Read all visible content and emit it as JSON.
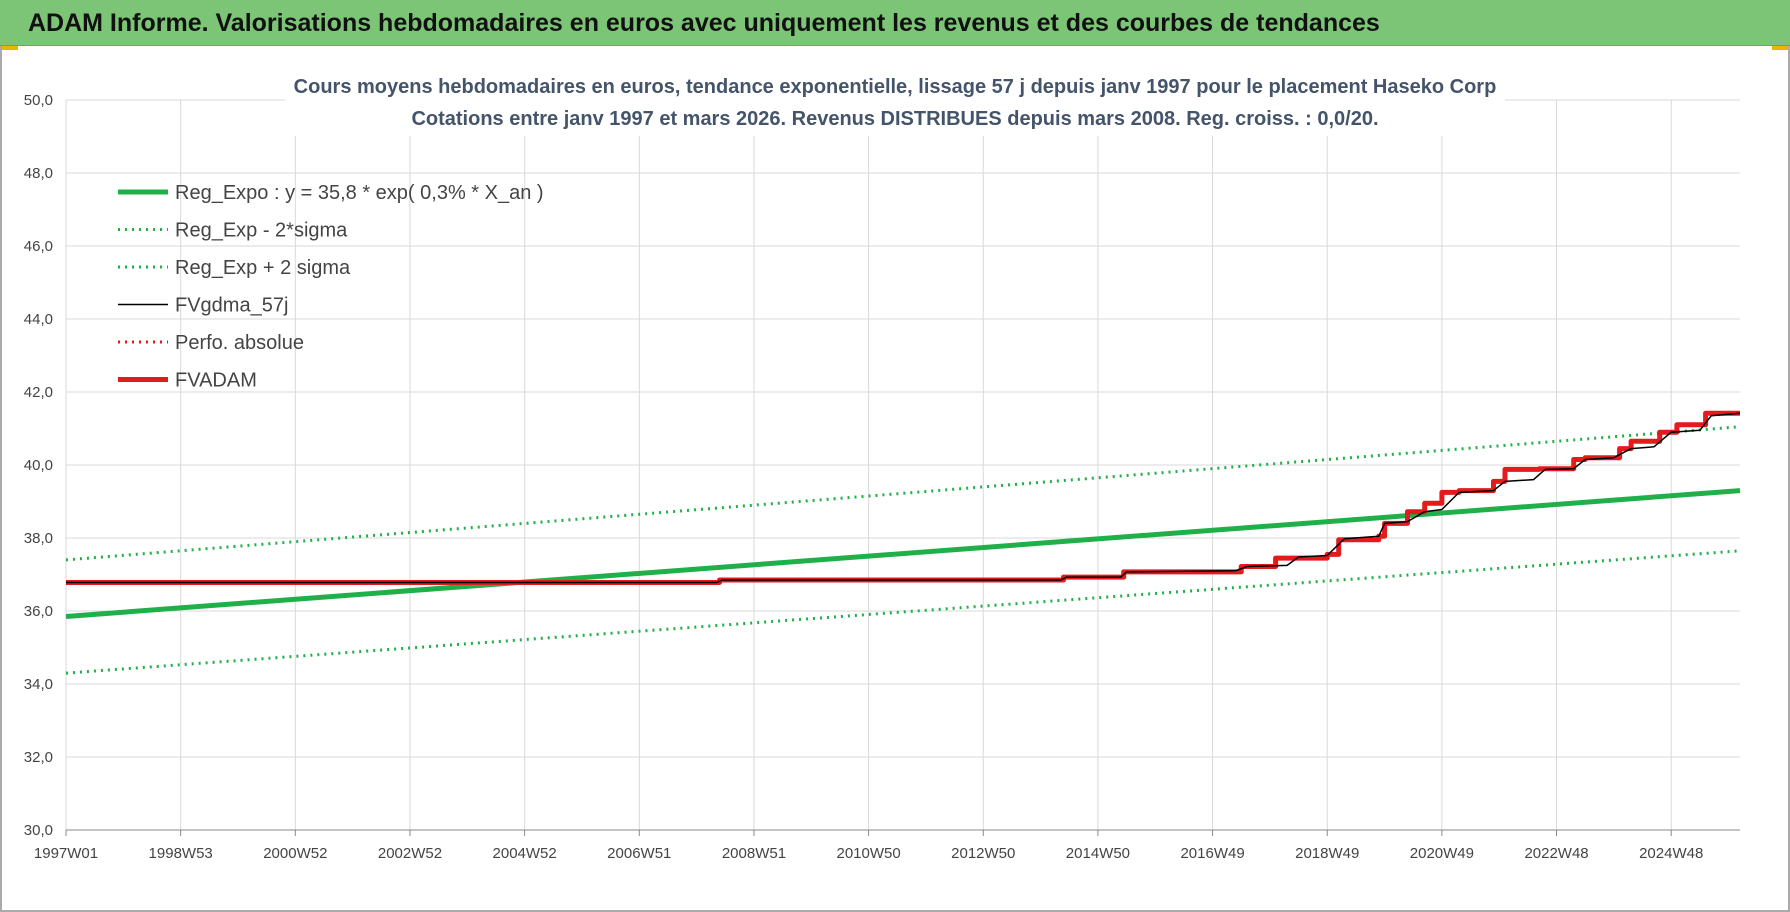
{
  "header": {
    "title": "ADAM Informe. Valorisations hebdomadaires en euros avec uniquement les revenus et des courbes de tendances"
  },
  "chart_data": {
    "type": "line",
    "title": "Cours moyens hebdomadaires en euros, tendance exponentielle, lissage 57 j depuis janv 1997  pour le placement Haseko Corp",
    "subtitle": "Cotations entre janv 1997 et mars 2026. Revenus DISTRIBUES depuis mars 2008.  Reg. croiss. : 0,0/20.",
    "xlabel": "",
    "ylabel": "",
    "ylim": [
      30,
      50
    ],
    "xlim": [
      1997.0,
      2026.2
    ],
    "grid": true,
    "legend_position": "top-left",
    "x_ticks": [
      {
        "x": 1997.0,
        "label": "1997W01"
      },
      {
        "x": 1999.0,
        "label": "1998W53"
      },
      {
        "x": 2001.0,
        "label": "2000W52"
      },
      {
        "x": 2003.0,
        "label": "2002W52"
      },
      {
        "x": 2005.0,
        "label": "2004W52"
      },
      {
        "x": 2007.0,
        "label": "2006W51"
      },
      {
        "x": 2009.0,
        "label": "2008W51"
      },
      {
        "x": 2011.0,
        "label": "2010W50"
      },
      {
        "x": 2013.0,
        "label": "2012W50"
      },
      {
        "x": 2015.0,
        "label": "2014W50"
      },
      {
        "x": 2017.0,
        "label": "2016W49"
      },
      {
        "x": 2019.0,
        "label": "2018W49"
      },
      {
        "x": 2021.0,
        "label": "2020W49"
      },
      {
        "x": 2023.0,
        "label": "2022W48"
      },
      {
        "x": 2025.0,
        "label": "2024W48"
      }
    ],
    "y_ticks": [
      {
        "y": 30,
        "label": "30,0"
      },
      {
        "y": 32,
        "label": "32,0"
      },
      {
        "y": 34,
        "label": "34,0"
      },
      {
        "y": 36,
        "label": "36,0"
      },
      {
        "y": 38,
        "label": "38,0"
      },
      {
        "y": 40,
        "label": "40,0"
      },
      {
        "y": 42,
        "label": "42,0"
      },
      {
        "y": 44,
        "label": "44,0"
      },
      {
        "y": 46,
        "label": "46,0"
      },
      {
        "y": 48,
        "label": "48,0"
      },
      {
        "y": 50,
        "label": "50,0"
      }
    ],
    "series": [
      {
        "name": "Reg_Expo : y = 35,8 * exp( 0,3% *  X_an )",
        "color": "#1fb04a",
        "style": "solid-thick",
        "x": [
          1997.0,
          2026.2
        ],
        "y": [
          35.85,
          39.3
        ]
      },
      {
        "name": "Reg_Exp - 2*sigma",
        "color": "#1fb04a",
        "style": "dotted",
        "x": [
          1997.0,
          2026.2
        ],
        "y": [
          34.3,
          37.65
        ]
      },
      {
        "name": "Reg_Exp + 2 sigma",
        "color": "#1fb04a",
        "style": "dotted",
        "x": [
          1997.0,
          2026.2
        ],
        "y": [
          37.4,
          41.05
        ]
      },
      {
        "name": "FVgdma_57j",
        "color": "#000000",
        "style": "solid-thin",
        "x": [
          1997.0,
          2008.35,
          2008.45,
          2014.35,
          2014.45,
          2015.4,
          2015.5,
          2017.4,
          2017.6,
          2018.3,
          2018.5,
          2019.0,
          2019.3,
          2019.9,
          2020.0,
          2020.4,
          2020.7,
          2021.0,
          2021.3,
          2021.9,
          2022.1,
          2022.6,
          2022.8,
          2023.3,
          2023.5,
          2024.0,
          2024.3,
          2024.7,
          2025.0,
          2025.5,
          2025.7,
          2026.2
        ],
        "y": [
          36.78,
          36.78,
          36.85,
          36.85,
          36.93,
          36.93,
          37.07,
          37.1,
          37.22,
          37.25,
          37.48,
          37.52,
          37.98,
          38.05,
          38.4,
          38.45,
          38.72,
          38.78,
          39.25,
          39.3,
          39.55,
          39.6,
          39.88,
          39.9,
          40.15,
          40.2,
          40.45,
          40.5,
          40.9,
          40.95,
          41.35,
          41.42
        ]
      },
      {
        "name": "Perfo. absolue",
        "color": "#e41a1c",
        "style": "dotted",
        "x": [],
        "y": []
      },
      {
        "name": "FVADAM",
        "color": "#e41a1c",
        "style": "solid-thick",
        "x": [
          1997.0,
          2008.4,
          2008.4,
          2014.4,
          2014.4,
          2015.45,
          2015.45,
          2017.5,
          2017.5,
          2018.1,
          2018.1,
          2019.0,
          2019.0,
          2019.2,
          2019.2,
          2019.9,
          2019.9,
          2020.0,
          2020.0,
          2020.4,
          2020.4,
          2020.7,
          2020.7,
          2021.0,
          2021.0,
          2021.3,
          2021.3,
          2021.9,
          2021.9,
          2022.1,
          2022.1,
          2022.7,
          2022.7,
          2023.3,
          2023.3,
          2023.5,
          2023.5,
          2024.1,
          2024.1,
          2024.3,
          2024.3,
          2024.8,
          2024.8,
          2025.1,
          2025.1,
          2025.6,
          2025.6,
          2026.2
        ],
        "y": [
          36.78,
          36.78,
          36.85,
          36.85,
          36.93,
          36.93,
          37.07,
          37.07,
          37.22,
          37.22,
          37.45,
          37.45,
          37.55,
          37.55,
          37.95,
          37.95,
          38.05,
          38.05,
          38.4,
          38.4,
          38.72,
          38.72,
          38.95,
          38.95,
          39.25,
          39.25,
          39.3,
          39.3,
          39.55,
          39.55,
          39.88,
          39.88,
          39.9,
          39.9,
          40.15,
          40.15,
          40.2,
          40.2,
          40.45,
          40.45,
          40.65,
          40.65,
          40.9,
          40.9,
          41.1,
          41.1,
          41.42,
          41.42
        ]
      }
    ]
  }
}
